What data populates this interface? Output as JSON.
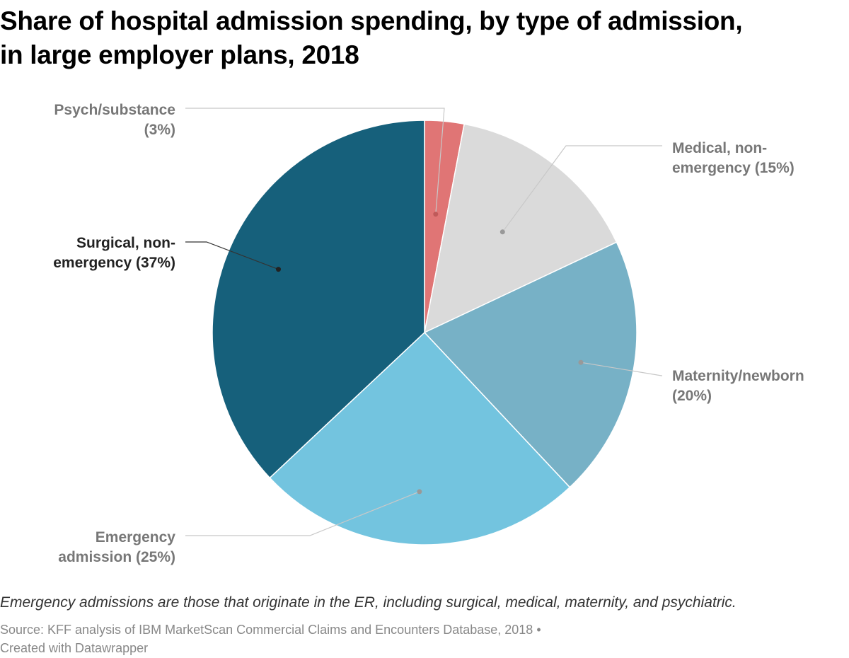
{
  "header": {
    "title_line1": "Share of hospital admission spending, by type of admission,",
    "title_line2": "in large employer plans, 2018"
  },
  "footer": {
    "notes": "Emergency admissions are those that originate in the ER, including surgical, medical, maternity, and psychiatric.",
    "source": "Source: KFF analysis of IBM MarketScan Commercial Claims and Encounters Database, 2018 •",
    "credit": "Created with Datawrapper"
  },
  "chart_data": {
    "type": "pie",
    "title": "Share of hospital admission spending, by type of admission, in large employer plans, 2018",
    "unit": "%",
    "slices": [
      {
        "key": "psych",
        "label_lines": [
          "Psych/substance",
          "(3%)"
        ],
        "value": 3,
        "color": "#e07575",
        "label_color": "#777777"
      },
      {
        "key": "medical",
        "label_lines": [
          "Medical, non-",
          "emergency (15%)"
        ],
        "value": 15,
        "color": "#dadada",
        "label_color": "#777777"
      },
      {
        "key": "maternity",
        "label_lines": [
          "Maternity/newborn",
          "(20%)"
        ],
        "value": 20,
        "color": "#77b1c6",
        "label_color": "#777777"
      },
      {
        "key": "emergency",
        "label_lines": [
          "Emergency",
          "admission (25%)"
        ],
        "value": 25,
        "color": "#73c4df",
        "label_color": "#777777"
      },
      {
        "key": "surgical",
        "label_lines": [
          "Surgical, non-",
          "emergency (37%)"
        ],
        "value": 37,
        "color": "#16607b",
        "label_color": "#222222"
      }
    ]
  }
}
